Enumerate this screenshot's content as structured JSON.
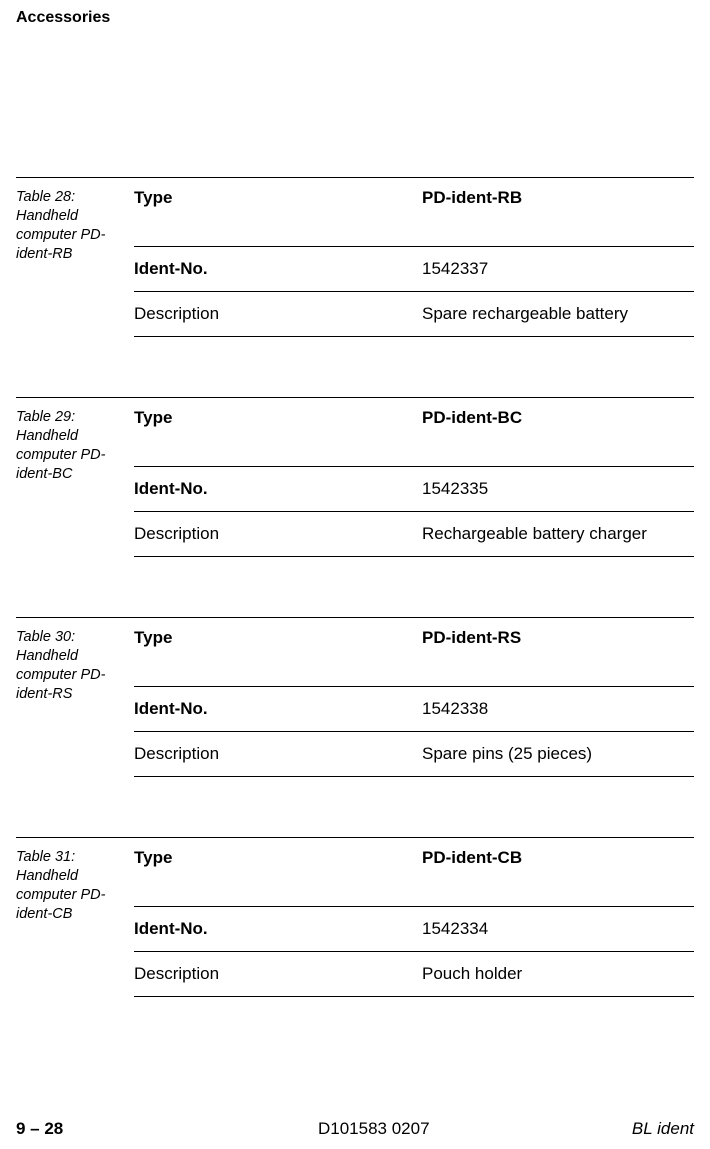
{
  "page_title": "Accessories",
  "labels": {
    "type": "Type",
    "ident": "Ident-No.",
    "desc": "Description"
  },
  "tables": [
    {
      "caption_prefix": "Table 28:",
      "caption_rest": "Handheld computer PD-ident-RB",
      "type_val": "PD-ident-RB",
      "ident_val": "1542337",
      "desc_val": "Spare rechargeable battery"
    },
    {
      "caption_prefix": "Table 29:",
      "caption_rest": "Handheld computer PD-ident-BC",
      "type_val": "PD-ident-BC",
      "ident_val": "1542335",
      "desc_val": "Rechargeable battery charger"
    },
    {
      "caption_prefix": "Table 30:",
      "caption_rest": "Handheld computer PD-ident-RS",
      "type_val": "PD-ident-RS",
      "ident_val": "1542338",
      "desc_val": "Spare pins (25 pieces)"
    },
    {
      "caption_prefix": "Table 31:",
      "caption_rest": "Handheld computer PD-ident-CB",
      "type_val": "PD-ident-CB",
      "ident_val": "1542334",
      "desc_val": "Pouch holder"
    }
  ],
  "footer": {
    "left": "9 – 28",
    "mid": "D101583 0207",
    "right": "BL ident"
  }
}
